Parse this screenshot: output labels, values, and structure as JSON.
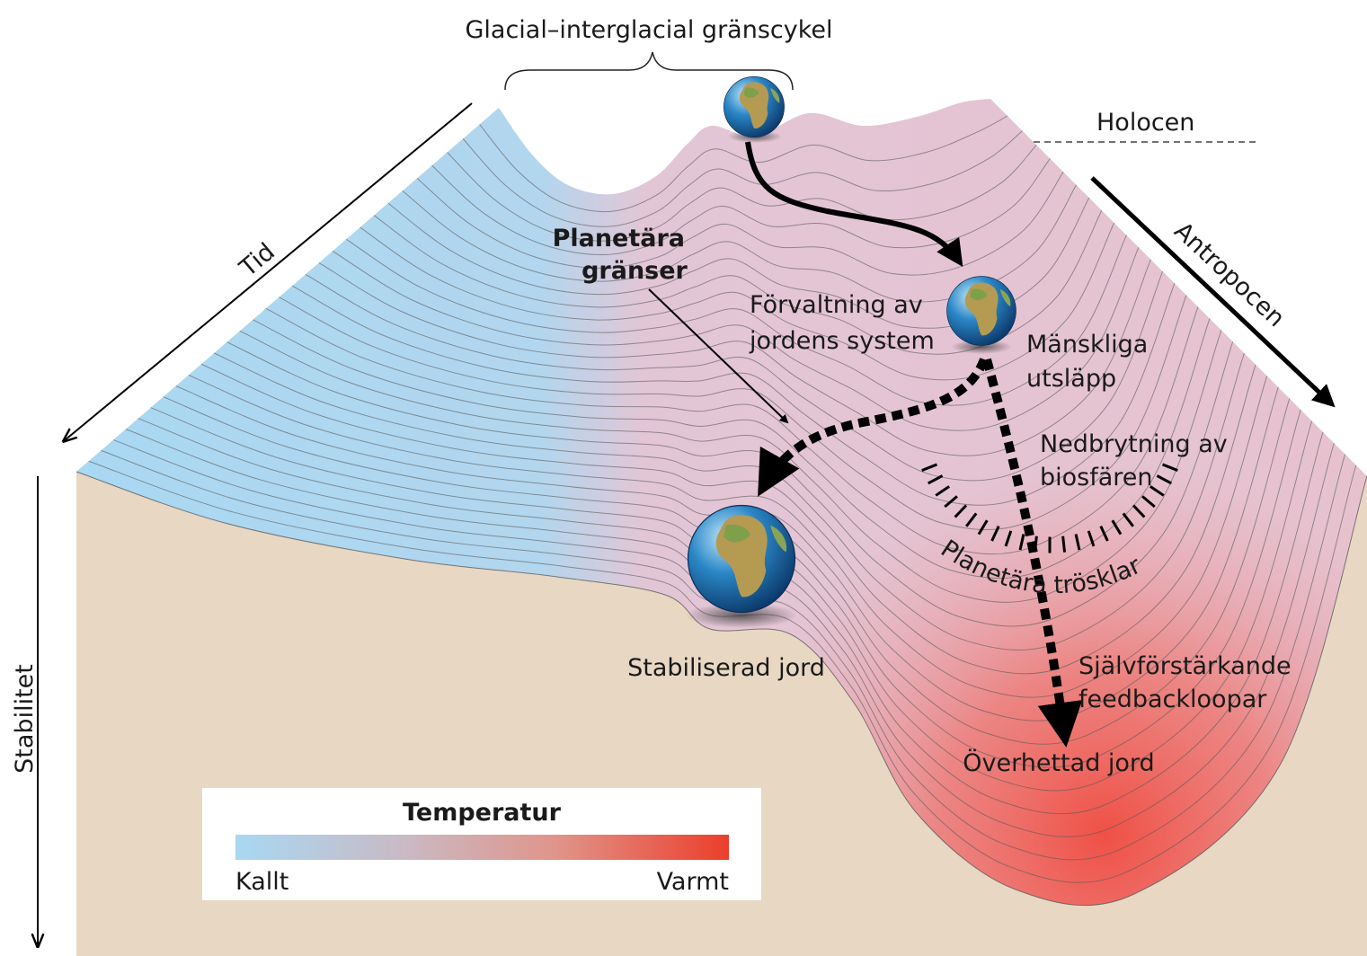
{
  "header": {
    "title": "Glacial–interglacial gränscykel"
  },
  "axes": {
    "time": "Tid",
    "anthropocene": "Antropocen",
    "holocene": "Holocen",
    "stability": "Stabilitet"
  },
  "labels": {
    "planetary_boundaries": [
      "Planetära",
      "gränser"
    ],
    "stewardship": [
      "Förvaltning av",
      "jordens system"
    ],
    "human_emissions": [
      "Mänskliga",
      "utsläpp"
    ],
    "biosphere_degradation": [
      "Nedbrytning av",
      "biosfären"
    ],
    "planetary_thresholds": "Planetära trösklar",
    "stabilized_earth": "Stabiliserad jord",
    "feedback_loops": [
      "Självförstärkande",
      "feedbackloopar"
    ],
    "hothouse_earth": "Överhettad jord"
  },
  "legend": {
    "title": "Temperatur",
    "low": "Kallt",
    "high": "Varmt"
  }
}
